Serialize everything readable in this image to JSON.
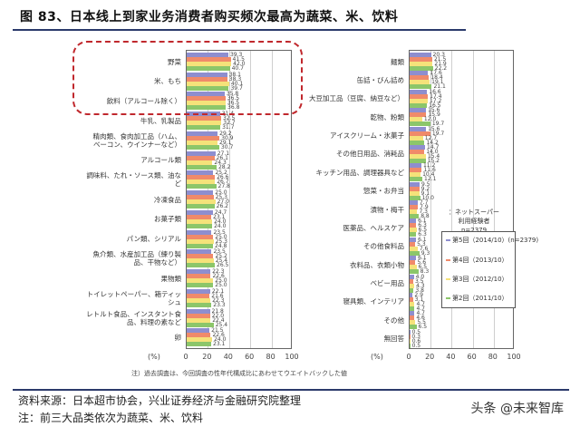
{
  "title": "图 83、日本线上到家业务消费者购买频次最高为蔬菜、米、饮料",
  "footer": {
    "source": "资料来源：日本超市协会，兴业证券经济与金融研究院整理",
    "note": "注：前三大品类依次为蔬菜、米、饮料",
    "watermark": "头条 @未来智库"
  },
  "chart_note": "注）過去調査は、今回調査の性年代構成比にあわせてウエイトバックした値",
  "net_label": "：ネットスーパー\n利用経験者\nn=2379",
  "colors": {
    "series5": "#8e8ecf",
    "series4": "#f08a6a",
    "series3": "#f5e27a",
    "series2": "#8cc66a",
    "highlight": "#c0282d"
  },
  "chart_data": [
    {
      "type": "bar",
      "orientation": "horizontal",
      "title": "",
      "xlabel": "(%)",
      "xlim": [
        0,
        100
      ],
      "xticks": [
        "0",
        "20",
        "40",
        "60",
        "80",
        "100"
      ],
      "grid": true,
      "categories": [
        "野菜",
        "米、もち",
        "飲料（アルコール除く）",
        "牛乳、乳製品",
        "精肉類、食肉加工品（ハム、\nベーコン、ウインナーなど）",
        "アルコール類",
        "調味料、たれ・ソース類、油な\nど",
        "冷凍食品",
        "お菓子類",
        "パン類、シリアル",
        "魚介類、水産加工品（練り製\n品、干物など）",
        "果物類",
        "トイレットペーパー、箱ティッ\nシュ",
        "レトルト食品、インスタント食\n品、料理の素など",
        "卵"
      ],
      "series": [
        {
          "name": "第5回（2014/10）(n=2379)",
          "values": [
            39.3,
            38.1,
            35.8,
            31.4,
            29.2,
            27.1,
            25.2,
            25.0,
            24.7,
            23.5,
            23.5,
            22.3,
            22.1,
            21.8,
            21.5
          ]
        },
        {
          "name": "第4回（2013/10）",
          "values": [
            41.5,
            38.3,
            36.5,
            32.5,
            30.9,
            26.1,
            26.6,
            25.3,
            23.1,
            25.0,
            25.2,
            22.6,
            21.6,
            22.0,
            22.6
          ]
        },
        {
          "name": "第3回（2012/10）",
          "values": [
            42.0,
            40.1,
            36.5,
            32.7,
            29.1,
            24.3,
            26.7,
            27.0,
            24.0,
            25.3,
            25.4,
            25.0,
            22.3,
            22.4,
            24.0
          ]
        },
        {
          "name": "第2回（2011/10）",
          "values": [
            40.7,
            39.7,
            36.8,
            31.7,
            30.7,
            28.2,
            27.8,
            26.2,
            24.0,
            24.8,
            26.5,
            25.0,
            23.3,
            25.4,
            23.1
          ]
        }
      ],
      "annotation": "前三大品类（野菜、米・もち、飲料）以红色虚线框标注"
    },
    {
      "type": "bar",
      "orientation": "horizontal",
      "title": "",
      "xlabel": "(%)",
      "xlim": [
        0,
        100
      ],
      "xticks": [
        "0",
        "20",
        "40",
        "60",
        "80",
        "100"
      ],
      "grid": true,
      "categories": [
        "麺類",
        "缶詰・びん詰め",
        "大豆加工品（豆腐、納豆など）",
        "乾物、粉類",
        "アイスクリーム・氷菓子",
        "その他日用品、消耗品",
        "キッチン用品、調理器具など",
        "惣菜・お弁当",
        "漬物・梅干",
        "医薬品、ヘルスケア",
        "その他食料品",
        "衣料品、衣類小物",
        "ベビー用品",
        "寝具類、インテリア",
        "その他",
        "無回答"
      ],
      "series": [
        {
          "name": "第5回（2014/10）(n=2379)",
          "values": [
            20.3,
            17.6,
            16.6,
            15.6,
            15.6,
            14.7,
            11.2,
            9.5,
            7.7,
            6.1,
            6.1,
            6.1,
            4.0,
            2.9,
            4.7,
            0.5
          ]
        },
        {
          "name": "第4回（2013/10）",
          "values": [
            21.5,
            18.4,
            17.4,
            15.9,
            19.7,
            14.0,
            11.6,
            9.2,
            7.9,
            6.3,
            5.3,
            5.6,
            3.5,
            3.1,
            4.6,
            0.3
          ]
        },
        {
          "name": "第3回（2012/10）",
          "values": [
            21.9,
            19.1,
            17.2,
            12.0,
            12.7,
            15.4,
            10.4,
            9.1,
            7.3,
            6.5,
            7.6,
            6.5,
            4.3,
            4.7,
            5.5,
            0.6
          ]
        },
        {
          "name": "第2回（2011/10）",
          "values": [
            22.2,
            21.1,
            16.5,
            19.7,
            14.2,
            15.2,
            12.1,
            10.0,
            8.8,
            6.3,
            9.3,
            8.3,
            3.8,
            4.7,
            6.5,
            0.5
          ]
        }
      ]
    }
  ]
}
